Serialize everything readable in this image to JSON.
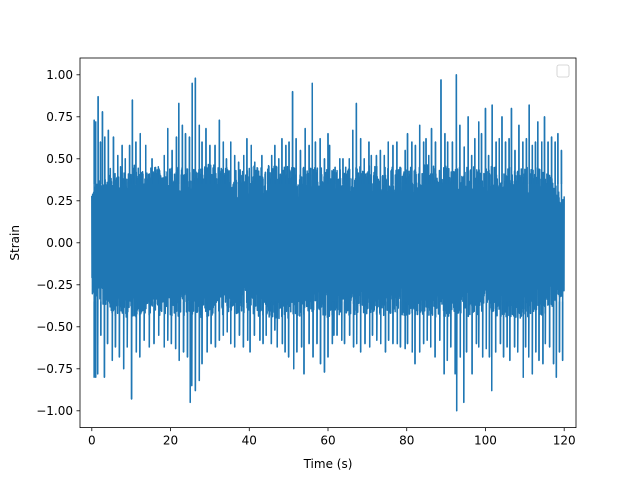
{
  "chart_data": {
    "type": "line",
    "title": "",
    "xlabel": "Time (s)",
    "ylabel": "Strain",
    "xlim": [
      -3,
      123
    ],
    "ylim": [
      -1.1,
      1.1
    ],
    "x_ticks": [
      0,
      20,
      40,
      60,
      80,
      100,
      120
    ],
    "x_tick_labels": [
      "0",
      "20",
      "40",
      "60",
      "80",
      "100",
      "120"
    ],
    "y_ticks": [
      -1.0,
      -0.75,
      -0.5,
      -0.25,
      0.0,
      0.25,
      0.5,
      0.75,
      1.0
    ],
    "y_tick_labels": [
      "−1.00",
      "−0.75",
      "−0.50",
      "−0.25",
      "0.00",
      "0.25",
      "0.50",
      "0.75",
      "1.00"
    ],
    "grid": false,
    "legend": {
      "placement": "top-right",
      "entries": []
    },
    "series": [
      {
        "color": "#1f77b4",
        "x_range": [
          0,
          120
        ],
        "band": [
          [
            0,
            -0.3,
            0.33
          ],
          [
            5,
            -0.43,
            0.45
          ],
          [
            10,
            -0.45,
            0.47
          ],
          [
            15,
            -0.43,
            0.45
          ],
          [
            20,
            -0.44,
            0.46
          ],
          [
            25,
            -0.45,
            0.45
          ],
          [
            30,
            -0.44,
            0.47
          ],
          [
            35,
            -0.43,
            0.45
          ],
          [
            40,
            -0.44,
            0.46
          ],
          [
            45,
            -0.45,
            0.46
          ],
          [
            50,
            -0.46,
            0.47
          ],
          [
            55,
            -0.43,
            0.45
          ],
          [
            60,
            -0.45,
            0.46
          ],
          [
            65,
            -0.43,
            0.44
          ],
          [
            70,
            -0.44,
            0.46
          ],
          [
            75,
            -0.45,
            0.45
          ],
          [
            80,
            -0.43,
            0.46
          ],
          [
            85,
            -0.44,
            0.47
          ],
          [
            90,
            -0.45,
            0.46
          ],
          [
            95,
            -0.44,
            0.45
          ],
          [
            100,
            -0.43,
            0.46
          ],
          [
            105,
            -0.44,
            0.45
          ],
          [
            110,
            -0.45,
            0.46
          ],
          [
            115,
            -0.43,
            0.44
          ],
          [
            120,
            -0.3,
            0.3
          ]
        ],
        "peaks": [
          [
            0.6,
            0.73
          ],
          [
            1.0,
            0.72
          ],
          [
            1.6,
            0.87
          ],
          [
            2.2,
            0.6
          ],
          [
            2.7,
            0.78
          ],
          [
            3.3,
            0.63
          ],
          [
            4.2,
            0.67
          ],
          [
            5.5,
            0.63
          ],
          [
            6.6,
            0.52
          ],
          [
            7.7,
            0.58
          ],
          [
            8.5,
            0.5
          ],
          [
            9.6,
            0.58
          ],
          [
            10.3,
            0.85
          ],
          [
            11.2,
            0.6
          ],
          [
            12.3,
            0.65
          ],
          [
            13.7,
            0.58
          ],
          [
            15.3,
            0.5
          ],
          [
            17.2,
            0.43
          ],
          [
            18.4,
            0.52
          ],
          [
            19.3,
            0.68
          ],
          [
            20.4,
            0.55
          ],
          [
            21.5,
            0.63
          ],
          [
            22.1,
            0.83
          ],
          [
            23.0,
            0.7
          ],
          [
            23.8,
            0.65
          ],
          [
            24.8,
            0.63
          ],
          [
            25.5,
            0.95
          ],
          [
            26.3,
            0.98
          ],
          [
            27.3,
            0.7
          ],
          [
            28.0,
            0.6
          ],
          [
            29.0,
            0.68
          ],
          [
            30.0,
            0.58
          ],
          [
            31.3,
            0.58
          ],
          [
            32.4,
            0.73
          ],
          [
            33.4,
            0.6
          ],
          [
            34.2,
            0.5
          ],
          [
            35.3,
            0.6
          ],
          [
            36.3,
            0.52
          ],
          [
            37.3,
            0.48
          ],
          [
            38.6,
            0.52
          ],
          [
            39.4,
            0.62
          ],
          [
            40.5,
            0.58
          ],
          [
            41.4,
            0.48
          ],
          [
            43.2,
            0.52
          ],
          [
            44.1,
            0.42
          ],
          [
            45.7,
            0.52
          ],
          [
            46.5,
            0.58
          ],
          [
            47.5,
            0.5
          ],
          [
            48.3,
            0.62
          ],
          [
            49.3,
            0.58
          ],
          [
            50.1,
            0.6
          ],
          [
            51.0,
            0.9
          ],
          [
            51.9,
            0.62
          ],
          [
            53.0,
            0.55
          ],
          [
            54.2,
            0.68
          ],
          [
            55.2,
            0.58
          ],
          [
            56.0,
            0.95
          ],
          [
            56.8,
            0.6
          ],
          [
            58.0,
            0.62
          ],
          [
            59.1,
            0.5
          ],
          [
            60.0,
            0.65
          ],
          [
            60.4,
            0.58
          ],
          [
            61.8,
            0.45
          ],
          [
            63.0,
            0.5
          ],
          [
            63.8,
            0.5
          ],
          [
            64.5,
            0.45
          ],
          [
            65.4,
            0.5
          ],
          [
            66.3,
            0.67
          ],
          [
            67.2,
            0.83
          ],
          [
            68.3,
            0.62
          ],
          [
            69.2,
            0.5
          ],
          [
            70.4,
            0.6
          ],
          [
            71.0,
            0.52
          ],
          [
            72.3,
            0.52
          ],
          [
            73.3,
            0.55
          ],
          [
            74.3,
            0.52
          ],
          [
            75.3,
            0.6
          ],
          [
            76.5,
            0.58
          ],
          [
            77.5,
            0.6
          ],
          [
            78.3,
            0.45
          ],
          [
            79.6,
            0.55
          ],
          [
            80.2,
            0.65
          ],
          [
            81.3,
            0.6
          ],
          [
            82.2,
            0.58
          ],
          [
            83.3,
            0.7
          ],
          [
            84.3,
            0.6
          ],
          [
            84.9,
            0.62
          ],
          [
            85.6,
            0.52
          ],
          [
            86.3,
            0.68
          ],
          [
            87.3,
            0.6
          ],
          [
            88.7,
            0.97
          ],
          [
            89.7,
            0.65
          ],
          [
            90.4,
            0.6
          ],
          [
            91.6,
            0.6
          ],
          [
            92.6,
            1.0
          ],
          [
            93.5,
            0.7
          ],
          [
            94.6,
            0.57
          ],
          [
            95.6,
            0.75
          ],
          [
            96.5,
            0.52
          ],
          [
            97.3,
            0.62
          ],
          [
            98.3,
            0.72
          ],
          [
            99.0,
            0.65
          ],
          [
            100.0,
            0.8
          ],
          [
            100.8,
            0.52
          ],
          [
            101.7,
            0.82
          ],
          [
            102.7,
            0.6
          ],
          [
            103.5,
            0.62
          ],
          [
            104.2,
            0.75
          ],
          [
            105.1,
            0.6
          ],
          [
            106.0,
            0.62
          ],
          [
            106.6,
            0.8
          ],
          [
            107.5,
            0.55
          ],
          [
            108.5,
            0.7
          ],
          [
            109.5,
            0.6
          ],
          [
            110.4,
            0.62
          ],
          [
            111.1,
            0.82
          ],
          [
            111.9,
            0.58
          ],
          [
            112.7,
            0.6
          ],
          [
            113.3,
            0.72
          ],
          [
            114.3,
            0.6
          ],
          [
            115.0,
            0.75
          ],
          [
            115.9,
            0.6
          ],
          [
            116.8,
            0.63
          ],
          [
            117.7,
            0.6
          ],
          [
            118.4,
            0.65
          ],
          [
            119.3,
            0.55
          ]
        ],
        "troughs": [
          [
            0.6,
            -0.8
          ],
          [
            1.0,
            -0.8
          ],
          [
            1.5,
            -0.78
          ],
          [
            2.3,
            -0.55
          ],
          [
            3.2,
            -0.8
          ],
          [
            4.0,
            -0.6
          ],
          [
            5.2,
            -0.7
          ],
          [
            6.0,
            -0.62
          ],
          [
            7.0,
            -0.68
          ],
          [
            8.1,
            -0.75
          ],
          [
            9.0,
            -0.62
          ],
          [
            10.1,
            -0.93
          ],
          [
            11.3,
            -0.65
          ],
          [
            12.2,
            -0.68
          ],
          [
            13.3,
            -0.58
          ],
          [
            14.6,
            -0.62
          ],
          [
            15.8,
            -0.6
          ],
          [
            17.0,
            -0.55
          ],
          [
            18.4,
            -0.62
          ],
          [
            19.3,
            -0.58
          ],
          [
            20.2,
            -0.6
          ],
          [
            21.3,
            -0.63
          ],
          [
            22.2,
            -0.7
          ],
          [
            23.3,
            -0.65
          ],
          [
            24.3,
            -0.68
          ],
          [
            25.0,
            -0.95
          ],
          [
            25.4,
            -0.85
          ],
          [
            26.3,
            -0.88
          ],
          [
            27.3,
            -0.82
          ],
          [
            28.0,
            -0.72
          ],
          [
            29.3,
            -0.65
          ],
          [
            30.3,
            -0.6
          ],
          [
            31.4,
            -0.62
          ],
          [
            32.4,
            -0.58
          ],
          [
            33.4,
            -0.55
          ],
          [
            34.4,
            -0.53
          ],
          [
            35.3,
            -0.6
          ],
          [
            36.3,
            -0.62
          ],
          [
            37.5,
            -0.55
          ],
          [
            38.5,
            -0.62
          ],
          [
            39.6,
            -0.58
          ],
          [
            40.2,
            -0.65
          ],
          [
            41.3,
            -0.55
          ],
          [
            42.7,
            -0.58
          ],
          [
            43.5,
            -0.6
          ],
          [
            44.3,
            -0.55
          ],
          [
            45.6,
            -0.6
          ],
          [
            46.5,
            -0.52
          ],
          [
            47.1,
            -0.62
          ],
          [
            48.4,
            -0.6
          ],
          [
            49.1,
            -0.65
          ],
          [
            50.0,
            -0.68
          ],
          [
            51.3,
            -0.75
          ],
          [
            52.1,
            -0.65
          ],
          [
            53.3,
            -0.62
          ],
          [
            53.9,
            -0.78
          ],
          [
            55.2,
            -0.6
          ],
          [
            56.2,
            -0.68
          ],
          [
            57.2,
            -0.6
          ],
          [
            58.1,
            -0.72
          ],
          [
            59.1,
            -0.77
          ],
          [
            60.0,
            -0.68
          ],
          [
            61.1,
            -0.6
          ],
          [
            61.5,
            -0.55
          ],
          [
            62.3,
            -0.55
          ],
          [
            63.5,
            -0.58
          ],
          [
            64.2,
            -0.6
          ],
          [
            65.5,
            -0.55
          ],
          [
            66.5,
            -0.62
          ],
          [
            67.3,
            -0.6
          ],
          [
            68.3,
            -0.65
          ],
          [
            69.4,
            -0.6
          ],
          [
            70.6,
            -0.62
          ],
          [
            71.3,
            -0.55
          ],
          [
            72.4,
            -0.58
          ],
          [
            73.4,
            -0.6
          ],
          [
            74.6,
            -0.65
          ],
          [
            75.4,
            -0.58
          ],
          [
            76.5,
            -0.6
          ],
          [
            77.6,
            -0.6
          ],
          [
            78.4,
            -0.62
          ],
          [
            79.6,
            -0.63
          ],
          [
            80.2,
            -0.6
          ],
          [
            81.4,
            -0.65
          ],
          [
            82.1,
            -0.72
          ],
          [
            83.3,
            -0.65
          ],
          [
            84.3,
            -0.6
          ],
          [
            85.2,
            -0.58
          ],
          [
            86.1,
            -0.62
          ],
          [
            87.2,
            -0.68
          ],
          [
            88.4,
            -0.58
          ],
          [
            89.5,
            -0.78
          ],
          [
            90.3,
            -0.7
          ],
          [
            91.2,
            -0.62
          ],
          [
            92.3,
            -0.78
          ],
          [
            92.7,
            -1.0
          ],
          [
            93.6,
            -0.68
          ],
          [
            94.5,
            -0.95
          ],
          [
            95.2,
            -0.65
          ],
          [
            96.6,
            -0.78
          ],
          [
            97.7,
            -0.6
          ],
          [
            98.3,
            -0.62
          ],
          [
            99.3,
            -0.68
          ],
          [
            100.2,
            -0.63
          ],
          [
            101.0,
            -0.68
          ],
          [
            101.6,
            -0.88
          ],
          [
            102.6,
            -0.65
          ],
          [
            103.8,
            -0.6
          ],
          [
            104.6,
            -0.68
          ],
          [
            105.5,
            -0.62
          ],
          [
            106.2,
            -0.7
          ],
          [
            107.4,
            -0.62
          ],
          [
            108.2,
            -0.65
          ],
          [
            109.6,
            -0.8
          ],
          [
            110.2,
            -0.62
          ],
          [
            111.0,
            -0.68
          ],
          [
            111.9,
            -0.78
          ],
          [
            112.8,
            -0.65
          ],
          [
            113.6,
            -0.7
          ],
          [
            114.6,
            -0.72
          ],
          [
            115.2,
            -0.6
          ],
          [
            116.3,
            -0.62
          ],
          [
            117.3,
            -0.72
          ],
          [
            118.0,
            -0.8
          ],
          [
            118.8,
            -0.65
          ],
          [
            119.6,
            -0.7
          ]
        ]
      }
    ]
  }
}
